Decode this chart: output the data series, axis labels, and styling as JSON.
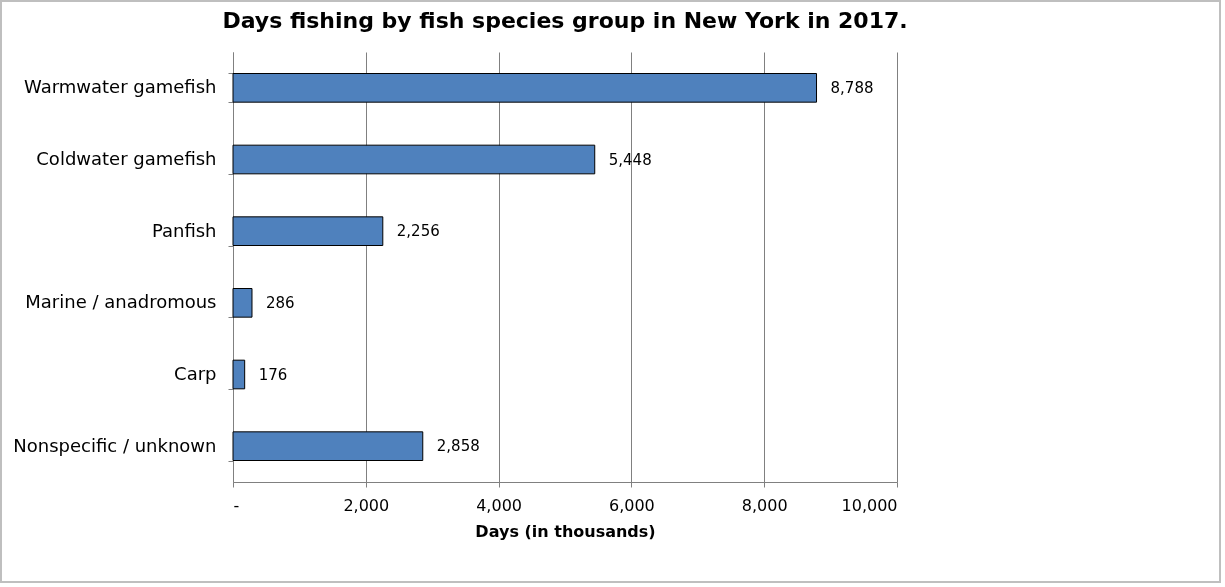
{
  "chart_data": {
    "type": "bar",
    "orientation": "horizontal",
    "title": "Days fishing by fish species group  in New York in 2017.",
    "xlabel": "Days (in thousands)",
    "categories": [
      "Warmwater gamefish",
      "Coldwater gamefish",
      "Panfish",
      "Marine / anadromous",
      "Carp",
      "Nonspecific / unknown"
    ],
    "values": [
      8788,
      5448,
      2256,
      286,
      176,
      2858
    ],
    "value_labels": [
      "8,788",
      "5,448",
      "2,256",
      "286",
      "176",
      "2,858"
    ],
    "color": "#4f81bd",
    "xlim": [
      0,
      10000
    ],
    "xticks": [
      {
        "value": 0,
        "label": "-"
      },
      {
        "value": 2000,
        "label": "2,000"
      },
      {
        "value": 4000,
        "label": "4,000"
      },
      {
        "value": 6000,
        "label": "6,000"
      },
      {
        "value": 8000,
        "label": "8,000"
      },
      {
        "value": 10000,
        "label": "10,000"
      }
    ],
    "grid": "x"
  }
}
